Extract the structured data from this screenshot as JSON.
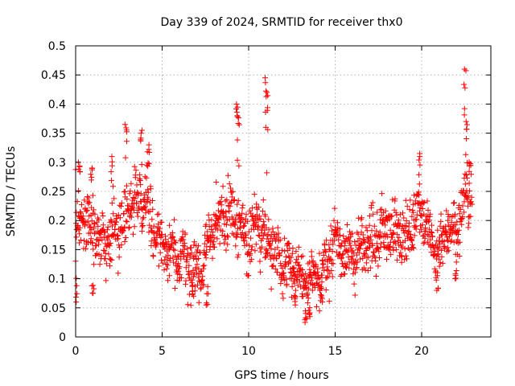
{
  "chart_data": {
    "type": "scatter",
    "title": "Day 339 of 2024, SRMTID for receiver thx0",
    "xlabel": "GPS time / hours",
    "ylabel": "SRMTID / TECUs",
    "xlim": [
      0,
      24
    ],
    "ylim": [
      0,
      0.5
    ],
    "xticks": [
      0,
      5,
      10,
      15,
      20
    ],
    "xtick_labels": [
      "0",
      "5",
      "10",
      "15",
      "20"
    ],
    "yticks": [
      0,
      0.05,
      0.1,
      0.15,
      0.2,
      0.25,
      0.3,
      0.35,
      0.4,
      0.45,
      0.5
    ],
    "ytick_labels": [
      "0",
      "0.05",
      "0.1",
      "0.15",
      "0.2",
      "0.25",
      "0.3",
      "0.35",
      "0.4",
      "0.45",
      "0.5"
    ],
    "grid": true,
    "marker": "plus",
    "color": "#ff0000",
    "x_data_range": [
      0,
      22.9
    ],
    "trend": {
      "x": [
        0,
        0.5,
        1,
        1.5,
        2,
        2.5,
        3,
        3.5,
        4,
        4.5,
        5,
        5.5,
        6,
        6.5,
        7,
        7.5,
        8,
        8.5,
        9,
        9.5,
        10,
        10.5,
        11,
        11.5,
        12,
        12.5,
        13,
        13.5,
        14,
        14.5,
        15,
        15.5,
        16,
        16.5,
        17,
        17.5,
        18,
        18.5,
        19,
        19.5,
        20,
        20.5,
        21,
        21.5,
        22,
        22.5,
        22.9
      ],
      "y": [
        0.18,
        0.2,
        0.19,
        0.16,
        0.17,
        0.19,
        0.21,
        0.24,
        0.25,
        0.18,
        0.16,
        0.15,
        0.13,
        0.12,
        0.11,
        0.14,
        0.19,
        0.21,
        0.22,
        0.19,
        0.17,
        0.19,
        0.17,
        0.15,
        0.13,
        0.12,
        0.1,
        0.09,
        0.1,
        0.13,
        0.17,
        0.15,
        0.14,
        0.15,
        0.16,
        0.17,
        0.19,
        0.18,
        0.17,
        0.2,
        0.23,
        0.16,
        0.15,
        0.19,
        0.18,
        0.24,
        0.25
      ],
      "spread": 0.035
    },
    "spikes": [
      {
        "x": 0.2,
        "y": 0.3
      },
      {
        "x": 0.9,
        "y": 0.29
      },
      {
        "x": 2.1,
        "y": 0.31
      },
      {
        "x": 2.9,
        "y": 0.365
      },
      {
        "x": 3.8,
        "y": 0.355
      },
      {
        "x": 4.2,
        "y": 0.33
      },
      {
        "x": 9.3,
        "y": 0.4
      },
      {
        "x": 9.4,
        "y": 0.38
      },
      {
        "x": 11.0,
        "y": 0.445
      },
      {
        "x": 11.1,
        "y": 0.42
      },
      {
        "x": 19.9,
        "y": 0.315
      },
      {
        "x": 22.5,
        "y": 0.46
      },
      {
        "x": 22.6,
        "y": 0.37
      },
      {
        "x": 22.8,
        "y": 0.3
      }
    ],
    "lows": [
      {
        "x": 0.05,
        "y": 0.06
      },
      {
        "x": 1.0,
        "y": 0.075
      },
      {
        "x": 6.8,
        "y": 0.07
      },
      {
        "x": 7.6,
        "y": 0.055
      },
      {
        "x": 12.7,
        "y": 0.055
      },
      {
        "x": 13.3,
        "y": 0.025
      },
      {
        "x": 13.5,
        "y": 0.035
      },
      {
        "x": 14.2,
        "y": 0.06
      },
      {
        "x": 20.9,
        "y": 0.08
      },
      {
        "x": 22.0,
        "y": 0.1
      }
    ]
  }
}
